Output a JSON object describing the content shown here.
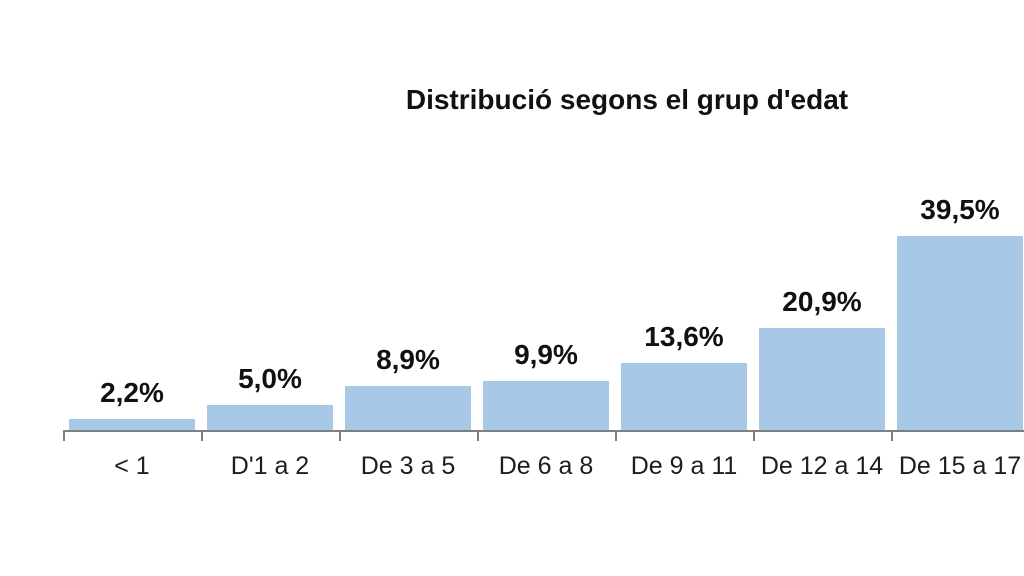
{
  "title": "Distribució segons el grup d'edat",
  "colors": {
    "bar_fill": "#a7c9e7",
    "axis": "#7f7f7f",
    "title_text": "#111111",
    "value_label_text": "#111111",
    "category_label_text": "#1d1d1d",
    "background": "#ffffff"
  },
  "chart_data": {
    "type": "bar",
    "title": "Distribució segons el grup d'edat",
    "categories": [
      "< 1",
      "D'1 a 2",
      "De 3 a 5",
      "De 6 a 8",
      "De 9 a 11",
      "De 12 a 14",
      "De 15 a 17"
    ],
    "values": [
      2.2,
      5.0,
      8.9,
      9.9,
      13.6,
      20.9,
      39.5
    ],
    "value_labels": [
      "2,2%",
      "5,0%",
      "8,9%",
      "9,9%",
      "13,6%",
      "20,9%",
      "39,5%"
    ],
    "xlabel": "",
    "ylabel": "",
    "ylim": [
      0,
      42
    ],
    "grid": false,
    "legend": "none",
    "value_labels_position": "above-bars",
    "x_axis_ticks": "at-category-boundaries",
    "y_axis_visible": false,
    "decimal_separator": ","
  }
}
